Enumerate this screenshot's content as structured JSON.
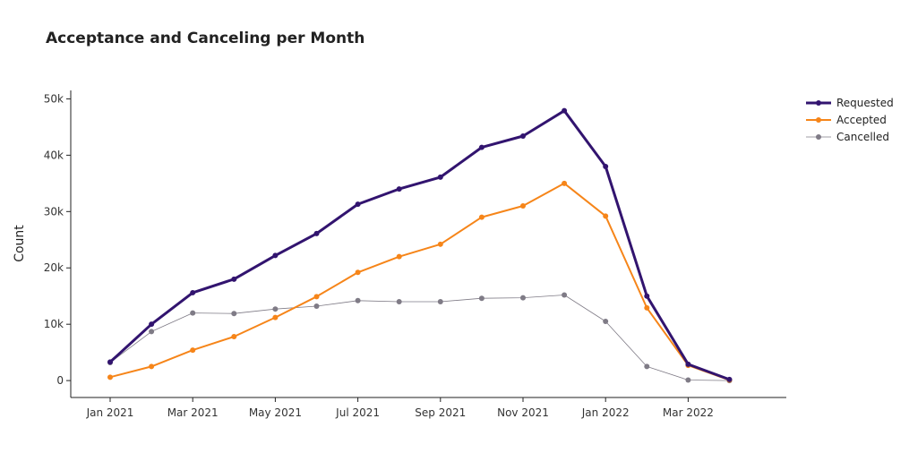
{
  "chart_data": {
    "type": "line",
    "title": "Acceptance and Canceling per Month",
    "xlabel": "",
    "ylabel": "Count",
    "ylim": [
      -3000,
      51500
    ],
    "yticks": [
      0,
      10000,
      20000,
      30000,
      40000,
      50000
    ],
    "ytick_labels": [
      "0",
      "10k",
      "20k",
      "30k",
      "40k",
      "50k"
    ],
    "x": [
      "2021-01",
      "2021-02",
      "2021-03",
      "2021-04",
      "2021-05",
      "2021-06",
      "2021-07",
      "2021-08",
      "2021-09",
      "2021-10",
      "2021-11",
      "2021-12",
      "2022-01",
      "2022-02",
      "2022-03",
      "2022-04"
    ],
    "xtick_positions": [
      0,
      2,
      4,
      6,
      8,
      10,
      12,
      14
    ],
    "xtick_labels": [
      "Jan 2021",
      "Mar 2021",
      "May 2021",
      "Jul 2021",
      "Sep 2021",
      "Nov 2021",
      "Jan 2022",
      "Mar 2022"
    ],
    "grid": false,
    "legend_position": "top-right",
    "series": [
      {
        "name": "Requested",
        "color": "#32146f",
        "values": [
          3300,
          10000,
          15600,
          18000,
          22200,
          26100,
          31300,
          34000,
          36100,
          41400,
          43400,
          47900,
          38000,
          15000,
          2900,
          200
        ]
      },
      {
        "name": "Accepted",
        "color": "#f68519",
        "values": [
          600,
          2500,
          5400,
          7800,
          11200,
          14900,
          19200,
          22000,
          24200,
          29000,
          31000,
          35000,
          29200,
          12900,
          2700,
          100
        ]
      },
      {
        "name": "Cancelled",
        "color": "#7f7b86",
        "values": [
          3200,
          8700,
          12000,
          11900,
          12700,
          13200,
          14200,
          14000,
          14000,
          14600,
          14700,
          15200,
          10500,
          2500,
          100,
          0
        ]
      }
    ]
  }
}
